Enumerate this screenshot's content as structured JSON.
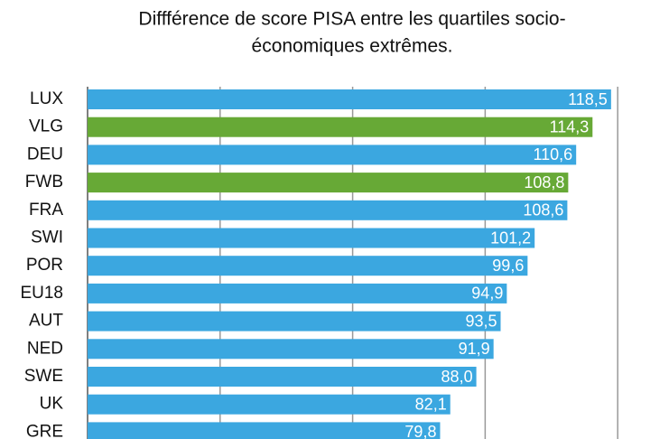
{
  "chart_data": {
    "type": "bar",
    "orientation": "horizontal",
    "title": [
      "Diffférence de score PISA entre les quartiles socio-",
      "économiques extrêmes."
    ],
    "categories": [
      "LUX",
      "VLG",
      "DEU",
      "FWB",
      "FRA",
      "SWI",
      "POR",
      "EU18",
      "AUT",
      "NED",
      "SWE",
      "UK",
      "GRE"
    ],
    "values": [
      118.5,
      114.3,
      110.6,
      108.8,
      108.6,
      101.2,
      99.6,
      94.9,
      93.5,
      91.9,
      88.0,
      82.1,
      79.8
    ],
    "value_labels": [
      "118,5",
      "114,3",
      "110,6",
      "108,8",
      "108,6",
      "101,2",
      "99,6",
      "94,9",
      "93,5",
      "91,9",
      "88,0",
      "82,1",
      "79,8"
    ],
    "colors": [
      "#3ba7e0",
      "#67a936",
      "#3ba7e0",
      "#67a936",
      "#3ba7e0",
      "#3ba7e0",
      "#3ba7e0",
      "#3ba7e0",
      "#3ba7e0",
      "#3ba7e0",
      "#3ba7e0",
      "#3ba7e0",
      "#3ba7e0"
    ],
    "xlim": [
      0,
      131
    ],
    "xticks": [
      0,
      30,
      60,
      90,
      120
    ],
    "grid": true
  }
}
